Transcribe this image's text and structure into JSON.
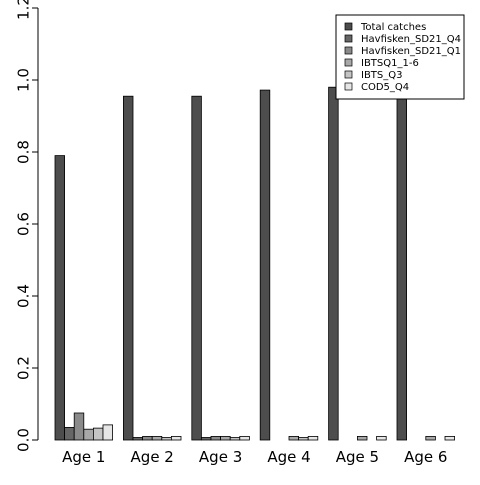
{
  "chart_data": {
    "type": "bar",
    "categories": [
      "Age 1",
      "Age 2",
      "Age 3",
      "Age 4",
      "Age 5",
      "Age 6"
    ],
    "series": [
      {
        "name": "Total catches",
        "color": "#4d4d4d",
        "values": [
          0.79,
          0.955,
          0.955,
          0.972,
          0.98,
          0.982
        ]
      },
      {
        "name": "Havfisken_SD21_Q4",
        "color": "#666666",
        "values": [
          0.035,
          0.007,
          0.007,
          0.0,
          0.0,
          0.0
        ]
      },
      {
        "name": "Havfisken_SD21_Q1",
        "color": "#8a8a8a",
        "values": [
          0.075,
          0.01,
          0.01,
          0.0,
          0.0,
          0.0
        ]
      },
      {
        "name": "IBTSQ1_1-6",
        "color": "#a8a8a8",
        "values": [
          0.03,
          0.01,
          0.01,
          0.01,
          0.01,
          0.01
        ]
      },
      {
        "name": "IBTS_Q3",
        "color": "#c4c4c4",
        "values": [
          0.033,
          0.007,
          0.007,
          0.007,
          0.0,
          0.0
        ]
      },
      {
        "name": "COD5_Q4",
        "color": "#e6e6e6",
        "values": [
          0.042,
          0.01,
          0.01,
          0.01,
          0.01,
          0.01
        ]
      }
    ],
    "ylim": [
      0,
      1.2
    ],
    "yticks": [
      "0.0",
      "0.2",
      "0.4",
      "0.6",
      "0.8",
      "1.0",
      "1.2"
    ],
    "ytick_values": [
      0,
      0.2,
      0.4,
      0.6,
      0.8,
      1.0,
      1.2
    ],
    "legend_position": "top-right",
    "grid": false
  }
}
